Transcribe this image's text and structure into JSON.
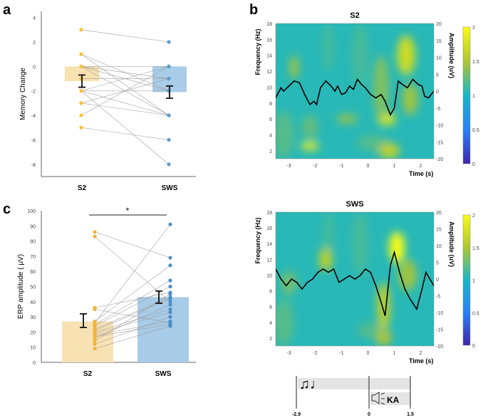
{
  "panel_labels": {
    "a": "a",
    "b": "b",
    "c": "c"
  },
  "chart_data": [
    {
      "id": "a",
      "type": "bar",
      "ylabel": "Memory Change",
      "categories": [
        "S2",
        "SWS"
      ],
      "ylim": [
        -9,
        4.5
      ],
      "yticks": [
        4,
        2,
        0,
        -2,
        -4,
        -6,
        -8
      ],
      "ytick_labels": [
        "4",
        "2",
        "0",
        "-2",
        "-4",
        "-6",
        "-8"
      ],
      "means": [
        -1.2,
        -2.1
      ],
      "errors": [
        [
          -1.7,
          -0.7
        ],
        [
          -2.6,
          -1.6
        ]
      ],
      "pairs": [
        [
          3,
          2
        ],
        [
          1,
          -2
        ],
        [
          1,
          -4
        ],
        [
          0,
          0
        ],
        [
          0,
          -1
        ],
        [
          0,
          -2
        ],
        [
          0,
          -4
        ],
        [
          -1,
          -1
        ],
        [
          -2,
          -8
        ],
        [
          -2,
          -4
        ],
        [
          -2,
          -2
        ],
        [
          -2,
          0
        ],
        [
          -3,
          -4
        ],
        [
          -3,
          -1
        ],
        [
          -4,
          0
        ],
        [
          -5,
          -6
        ]
      ],
      "colors": {
        "S2": "#f5c242",
        "SWS": "#5b9fd0",
        "S2_bar": "#f7e2b0",
        "SWS_bar": "#a9cde9"
      }
    },
    {
      "id": "c",
      "type": "bar",
      "ylabel": "ERP amplitude ( μV)",
      "categories": [
        "S2",
        "SWS"
      ],
      "ylim": [
        0,
        100
      ],
      "yticks": [
        0,
        10,
        20,
        30,
        40,
        50,
        60,
        70,
        80,
        90,
        100
      ],
      "ytick_labels": [
        "0",
        "10",
        "20",
        "30",
        "40",
        "50",
        "60",
        "70",
        "80",
        "90",
        "100"
      ],
      "means": [
        27,
        43
      ],
      "errors": [
        [
          23,
          32
        ],
        [
          39,
          47
        ]
      ],
      "significance": "*",
      "pairs": [
        [
          86,
          69
        ],
        [
          83,
          40
        ],
        [
          36,
          46
        ],
        [
          35,
          26
        ],
        [
          27,
          64
        ],
        [
          26,
          91
        ],
        [
          25,
          54
        ],
        [
          24,
          50
        ],
        [
          22,
          43
        ],
        [
          21,
          42
        ],
        [
          20,
          35
        ],
        [
          19,
          33
        ],
        [
          18,
          27
        ],
        [
          17,
          25
        ],
        [
          16,
          38
        ],
        [
          14,
          45
        ],
        [
          12,
          30
        ],
        [
          9,
          24
        ]
      ],
      "colors": {
        "S2": "#f5b335",
        "SWS": "#4a90c8",
        "S2_bar": "#f8e2b4",
        "SWS_bar": "#a8cbe7"
      }
    },
    {
      "id": "b1",
      "type": "heatmap",
      "title": "S2",
      "xlabel": "Time (s)",
      "ylabel": "Frequency (Hz)",
      "y2label": "Amplitude (uV)",
      "xlim": [
        -3.5,
        2.5
      ],
      "ylim": [
        1,
        18
      ],
      "y2lim": [
        -20,
        20
      ],
      "xticks": [
        -3,
        -2,
        -1,
        0,
        1,
        2
      ],
      "yticks": [
        2,
        4,
        6,
        8,
        10,
        12,
        14,
        16,
        18
      ],
      "y2ticks": [
        -20,
        -15,
        -10,
        -5,
        0,
        5,
        10,
        15,
        20
      ],
      "colorbar": {
        "range": [
          0,
          2
        ],
        "ticks": [
          "0",
          "0.5",
          "1",
          "1.5",
          "2"
        ]
      },
      "hotspots": [
        [
          -2.2,
          2.6,
          0.35,
          0.5,
          1.9
        ],
        [
          -2.8,
          12.5,
          0.15,
          1.5,
          1.5
        ],
        [
          0.7,
          6,
          0.35,
          0.8,
          1.8
        ],
        [
          0.8,
          2,
          0.4,
          1,
          1.6
        ],
        [
          1.45,
          14,
          0.35,
          2.5,
          1.7
        ],
        [
          1.6,
          8.5,
          0.3,
          2,
          1.45
        ],
        [
          -0.8,
          6,
          0.4,
          0.6,
          1.4
        ],
        [
          0.5,
          10,
          0.3,
          4,
          1.35
        ],
        [
          -2.2,
          5,
          0.3,
          1.5,
          1.25
        ]
      ],
      "trace": [
        [
          -3.5,
          -2
        ],
        [
          -3.3,
          1
        ],
        [
          -3.2,
          0
        ],
        [
          -3,
          1.5
        ],
        [
          -2.8,
          3
        ],
        [
          -2.6,
          2.5
        ],
        [
          -2.4,
          -1
        ],
        [
          -2.2,
          -4
        ],
        [
          -2.05,
          -3
        ],
        [
          -1.95,
          -4
        ],
        [
          -1.8,
          1
        ],
        [
          -1.6,
          3
        ],
        [
          -1.4,
          1.5
        ],
        [
          -1.25,
          0
        ],
        [
          -1.15,
          1.5
        ],
        [
          -1,
          -1
        ],
        [
          -0.85,
          -0.5
        ],
        [
          -0.7,
          1.5
        ],
        [
          -0.55,
          0.5
        ],
        [
          -0.4,
          3.5
        ],
        [
          -0.25,
          2
        ],
        [
          -0.1,
          1
        ],
        [
          0.1,
          -1
        ],
        [
          0.3,
          -2
        ],
        [
          0.5,
          -1
        ],
        [
          0.65,
          -3
        ],
        [
          0.85,
          -7
        ],
        [
          1,
          -5
        ],
        [
          1.15,
          3
        ],
        [
          1.3,
          2
        ],
        [
          1.5,
          1
        ],
        [
          1.7,
          3.5
        ],
        [
          1.9,
          2
        ],
        [
          2.05,
          1.5
        ],
        [
          2.15,
          -1.5
        ],
        [
          2.3,
          -2
        ],
        [
          2.5,
          0
        ]
      ]
    },
    {
      "id": "b2",
      "type": "heatmap",
      "title": "SWS",
      "xlabel": "Time (s)",
      "ylabel": "Frequency (Hz)",
      "y2label": "Amplitude (uV)",
      "xlim": [
        -3.5,
        2.5
      ],
      "ylim": [
        1,
        18
      ],
      "y2lim": [
        -20,
        20
      ],
      "xticks": [
        -3,
        -2,
        -1,
        0,
        1,
        2
      ],
      "yticks": [
        2,
        4,
        6,
        8,
        10,
        12,
        14,
        16,
        18
      ],
      "y2ticks": [
        -20,
        -15,
        -10,
        -5,
        0,
        5,
        10,
        15,
        20
      ],
      "colorbar": {
        "range": [
          0,
          2
        ],
        "ticks": [
          "0",
          "0.5",
          "1",
          "1.5",
          "2"
        ]
      },
      "hotspots": [
        [
          1.1,
          13.5,
          0.3,
          2,
          2
        ],
        [
          -1.6,
          12,
          0.25,
          1.5,
          1.6
        ],
        [
          0.6,
          6,
          0.25,
          3,
          1.6
        ],
        [
          0.6,
          2,
          0.3,
          1,
          1.5
        ],
        [
          1.5,
          10,
          0.35,
          2,
          1.45
        ],
        [
          -3,
          9,
          0.3,
          1.5,
          1.3
        ]
      ],
      "trace": [
        [
          -3.5,
          3
        ],
        [
          -3.3,
          0
        ],
        [
          -3.1,
          -2
        ],
        [
          -2.9,
          0
        ],
        [
          -2.7,
          -1
        ],
        [
          -2.5,
          -3
        ],
        [
          -2.3,
          -1
        ],
        [
          -2.1,
          0
        ],
        [
          -1.9,
          2
        ],
        [
          -1.7,
          3
        ],
        [
          -1.5,
          2
        ],
        [
          -1.3,
          3
        ],
        [
          -1.1,
          -1
        ],
        [
          -0.9,
          0
        ],
        [
          -0.7,
          1
        ],
        [
          -0.5,
          0
        ],
        [
          -0.3,
          1
        ],
        [
          -0.1,
          3
        ],
        [
          0.1,
          2
        ],
        [
          0.3,
          -2
        ],
        [
          0.5,
          -7
        ],
        [
          0.65,
          -11
        ],
        [
          0.85,
          4
        ],
        [
          1,
          8
        ],
        [
          1.2,
          2
        ],
        [
          1.4,
          -3
        ],
        [
          1.6,
          -6
        ],
        [
          1.85,
          -9
        ],
        [
          2.05,
          -3
        ],
        [
          2.2,
          2
        ],
        [
          2.35,
          0
        ],
        [
          2.5,
          -2
        ]
      ]
    }
  ],
  "timeline": {
    "labels": [
      "-2.9",
      "0",
      "1.5"
    ],
    "stimulus": "KA",
    "music_icon": "music-notes-icon",
    "speaker_icon": "speaker-icon"
  }
}
